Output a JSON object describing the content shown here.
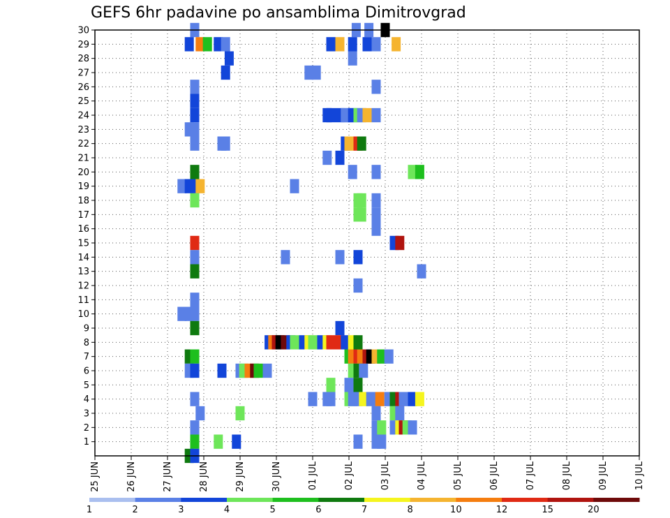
{
  "chart_data": {
    "type": "heatmap",
    "title": "GEFS 6hr padavine po ansamblima Dimitrovgrad",
    "x_ticks": [
      "25 JUN",
      "26 JUN",
      "27 JUN",
      "28 JUN",
      "29 JUN",
      "30 JUN",
      "01 JUL",
      "02 JUL",
      "03 JUL",
      "04 JUL",
      "05 JUL",
      "06 JUL",
      "07 JUL",
      "08 JUL",
      "09 JUL",
      "10 JUL"
    ],
    "y_ticks": [
      "1",
      "2",
      "3",
      "4",
      "5",
      "6",
      "7",
      "8",
      "9",
      "10",
      "11",
      "12",
      "13",
      "14",
      "15",
      "16",
      "17",
      "18",
      "19",
      "20",
      "21",
      "22",
      "23",
      "24",
      "25",
      "26",
      "27",
      "28",
      "29",
      "30"
    ],
    "xlim": [
      0,
      15
    ],
    "ylim": [
      0,
      30
    ],
    "grid": true,
    "colorbar": {
      "labels": [
        "1",
        "2",
        "3",
        "4",
        "5",
        "6",
        "7",
        "8",
        "10",
        "12",
        "15",
        "20"
      ],
      "colors": [
        "#aabfef",
        "#5a80e6",
        "#1245d9",
        "#6ee65a",
        "#1ebf1e",
        "#0f7a0f",
        "#f5f51e",
        "#f5b430",
        "#f57d0f",
        "#e02a14",
        "#b0140f",
        "#6e0a0a"
      ]
    },
    "cells": [
      [
        2.75,
        30,
        1
      ],
      [
        7.2,
        30,
        1
      ],
      [
        7.55,
        30,
        1
      ],
      [
        8.0,
        30,
        12
      ],
      [
        2.6,
        29,
        2
      ],
      [
        2.9,
        29,
        8
      ],
      [
        3.1,
        29,
        4
      ],
      [
        3.4,
        29,
        2
      ],
      [
        3.6,
        29,
        1
      ],
      [
        6.5,
        29,
        2
      ],
      [
        6.75,
        29,
        7
      ],
      [
        7.1,
        29,
        2
      ],
      [
        7.5,
        29,
        2
      ],
      [
        7.75,
        29,
        1
      ],
      [
        8.3,
        29,
        7
      ],
      [
        3.7,
        28,
        2
      ],
      [
        7.1,
        28,
        1
      ],
      [
        3.6,
        27,
        2
      ],
      [
        5.9,
        27,
        1
      ],
      [
        6.1,
        27,
        1
      ],
      [
        2.75,
        26,
        1
      ],
      [
        7.75,
        26,
        1
      ],
      [
        2.75,
        25,
        2
      ],
      [
        2.75,
        24,
        2
      ],
      [
        6.4,
        24,
        2
      ],
      [
        6.5,
        24,
        2
      ],
      [
        6.75,
        24,
        2
      ],
      [
        6.9,
        24,
        1
      ],
      [
        7.0,
        24,
        1
      ],
      [
        7.1,
        24,
        2
      ],
      [
        7.25,
        24,
        3
      ],
      [
        7.35,
        24,
        1
      ],
      [
        7.5,
        24,
        7
      ],
      [
        7.75,
        24,
        1
      ],
      [
        2.6,
        23,
        1
      ],
      [
        2.75,
        23,
        1
      ],
      [
        2.75,
        22,
        1
      ],
      [
        3.5,
        22,
        1
      ],
      [
        3.6,
        22,
        1
      ],
      [
        6.9,
        22,
        2
      ],
      [
        7.0,
        22,
        7
      ],
      [
        7.25,
        22,
        9
      ],
      [
        7.35,
        22,
        5
      ],
      [
        6.4,
        21,
        1
      ],
      [
        6.75,
        21,
        2
      ],
      [
        2.75,
        20,
        5
      ],
      [
        7.1,
        20,
        1
      ],
      [
        7.75,
        20,
        1
      ],
      [
        8.75,
        20,
        3
      ],
      [
        8.95,
        20,
        4
      ],
      [
        2.4,
        19,
        1
      ],
      [
        2.6,
        19,
        2
      ],
      [
        2.75,
        19,
        2
      ],
      [
        2.9,
        19,
        7
      ],
      [
        5.5,
        19,
        1
      ],
      [
        2.75,
        18,
        3
      ],
      [
        7.25,
        18,
        3
      ],
      [
        7.35,
        18,
        3
      ],
      [
        7.75,
        18,
        1
      ],
      [
        7.25,
        17,
        3
      ],
      [
        7.35,
        17,
        3
      ],
      [
        7.75,
        17,
        1
      ],
      [
        7.75,
        16,
        1
      ],
      [
        2.75,
        15,
        9
      ],
      [
        8.25,
        15,
        2
      ],
      [
        8.4,
        15,
        10
      ],
      [
        2.75,
        14,
        1
      ],
      [
        5.25,
        14,
        1
      ],
      [
        6.75,
        14,
        1
      ],
      [
        7.25,
        14,
        2
      ],
      [
        2.75,
        13,
        5
      ],
      [
        9.0,
        13,
        1
      ],
      [
        7.25,
        12,
        1
      ],
      [
        2.75,
        11,
        1
      ],
      [
        2.4,
        10,
        1
      ],
      [
        2.6,
        10,
        1
      ],
      [
        2.75,
        10,
        1
      ],
      [
        2.75,
        9,
        5
      ],
      [
        6.75,
        9,
        2
      ],
      [
        4.8,
        8,
        2
      ],
      [
        4.9,
        8,
        8
      ],
      [
        5.0,
        8,
        10
      ],
      [
        5.1,
        8,
        12
      ],
      [
        5.25,
        8,
        11
      ],
      [
        5.4,
        8,
        2
      ],
      [
        5.5,
        8,
        3
      ],
      [
        5.75,
        8,
        2
      ],
      [
        5.9,
        8,
        6
      ],
      [
        6.0,
        8,
        3
      ],
      [
        6.25,
        8,
        2
      ],
      [
        6.4,
        8,
        6
      ],
      [
        6.5,
        8,
        9
      ],
      [
        6.75,
        8,
        9
      ],
      [
        6.9,
        8,
        2
      ],
      [
        7.1,
        8,
        6
      ],
      [
        7.25,
        8,
        5
      ],
      [
        2.6,
        7,
        5
      ],
      [
        2.75,
        7,
        4
      ],
      [
        7.0,
        7,
        4
      ],
      [
        7.1,
        7,
        8
      ],
      [
        7.25,
        7,
        9
      ],
      [
        7.35,
        7,
        8
      ],
      [
        7.5,
        7,
        10
      ],
      [
        7.6,
        7,
        12
      ],
      [
        7.75,
        7,
        7
      ],
      [
        7.9,
        7,
        4
      ],
      [
        8.1,
        7,
        1
      ],
      [
        2.6,
        6,
        1
      ],
      [
        2.75,
        6,
        2
      ],
      [
        3.5,
        6,
        2
      ],
      [
        4.0,
        6,
        1
      ],
      [
        4.1,
        6,
        3
      ],
      [
        4.25,
        6,
        8
      ],
      [
        4.4,
        6,
        11
      ],
      [
        4.5,
        6,
        4
      ],
      [
        4.75,
        6,
        1
      ],
      [
        7.1,
        6,
        3
      ],
      [
        7.25,
        6,
        5
      ],
      [
        7.4,
        6,
        1
      ],
      [
        6.5,
        5,
        3
      ],
      [
        7.0,
        5,
        1
      ],
      [
        7.25,
        5,
        5
      ],
      [
        2.75,
        4,
        1
      ],
      [
        6.0,
        4,
        1
      ],
      [
        6.4,
        4,
        1
      ],
      [
        6.5,
        4,
        1
      ],
      [
        7.0,
        4,
        3
      ],
      [
        7.1,
        4,
        1
      ],
      [
        7.25,
        4,
        1
      ],
      [
        7.4,
        4,
        6
      ],
      [
        7.6,
        4,
        1
      ],
      [
        7.75,
        4,
        1
      ],
      [
        7.85,
        4,
        8
      ],
      [
        8.1,
        4,
        1
      ],
      [
        8.25,
        4,
        5
      ],
      [
        8.4,
        4,
        10
      ],
      [
        8.5,
        4,
        1
      ],
      [
        8.75,
        4,
        2
      ],
      [
        8.95,
        4,
        6
      ],
      [
        2.9,
        3,
        1
      ],
      [
        4.0,
        3,
        3
      ],
      [
        7.75,
        3,
        1
      ],
      [
        8.25,
        3,
        3
      ],
      [
        8.4,
        3,
        1
      ],
      [
        2.75,
        2,
        1
      ],
      [
        7.75,
        2,
        1
      ],
      [
        7.9,
        2,
        3
      ],
      [
        8.25,
        2,
        1
      ],
      [
        8.4,
        2,
        6
      ],
      [
        8.5,
        2,
        10
      ],
      [
        8.6,
        2,
        3
      ],
      [
        8.75,
        2,
        1
      ],
      [
        2.75,
        1,
        4
      ],
      [
        3.4,
        1,
        3
      ],
      [
        3.9,
        1,
        2
      ],
      [
        7.25,
        1,
        1
      ],
      [
        7.75,
        1,
        1
      ],
      [
        7.9,
        1,
        1
      ],
      [
        2.6,
        0,
        5
      ],
      [
        2.75,
        0,
        2
      ]
    ]
  }
}
